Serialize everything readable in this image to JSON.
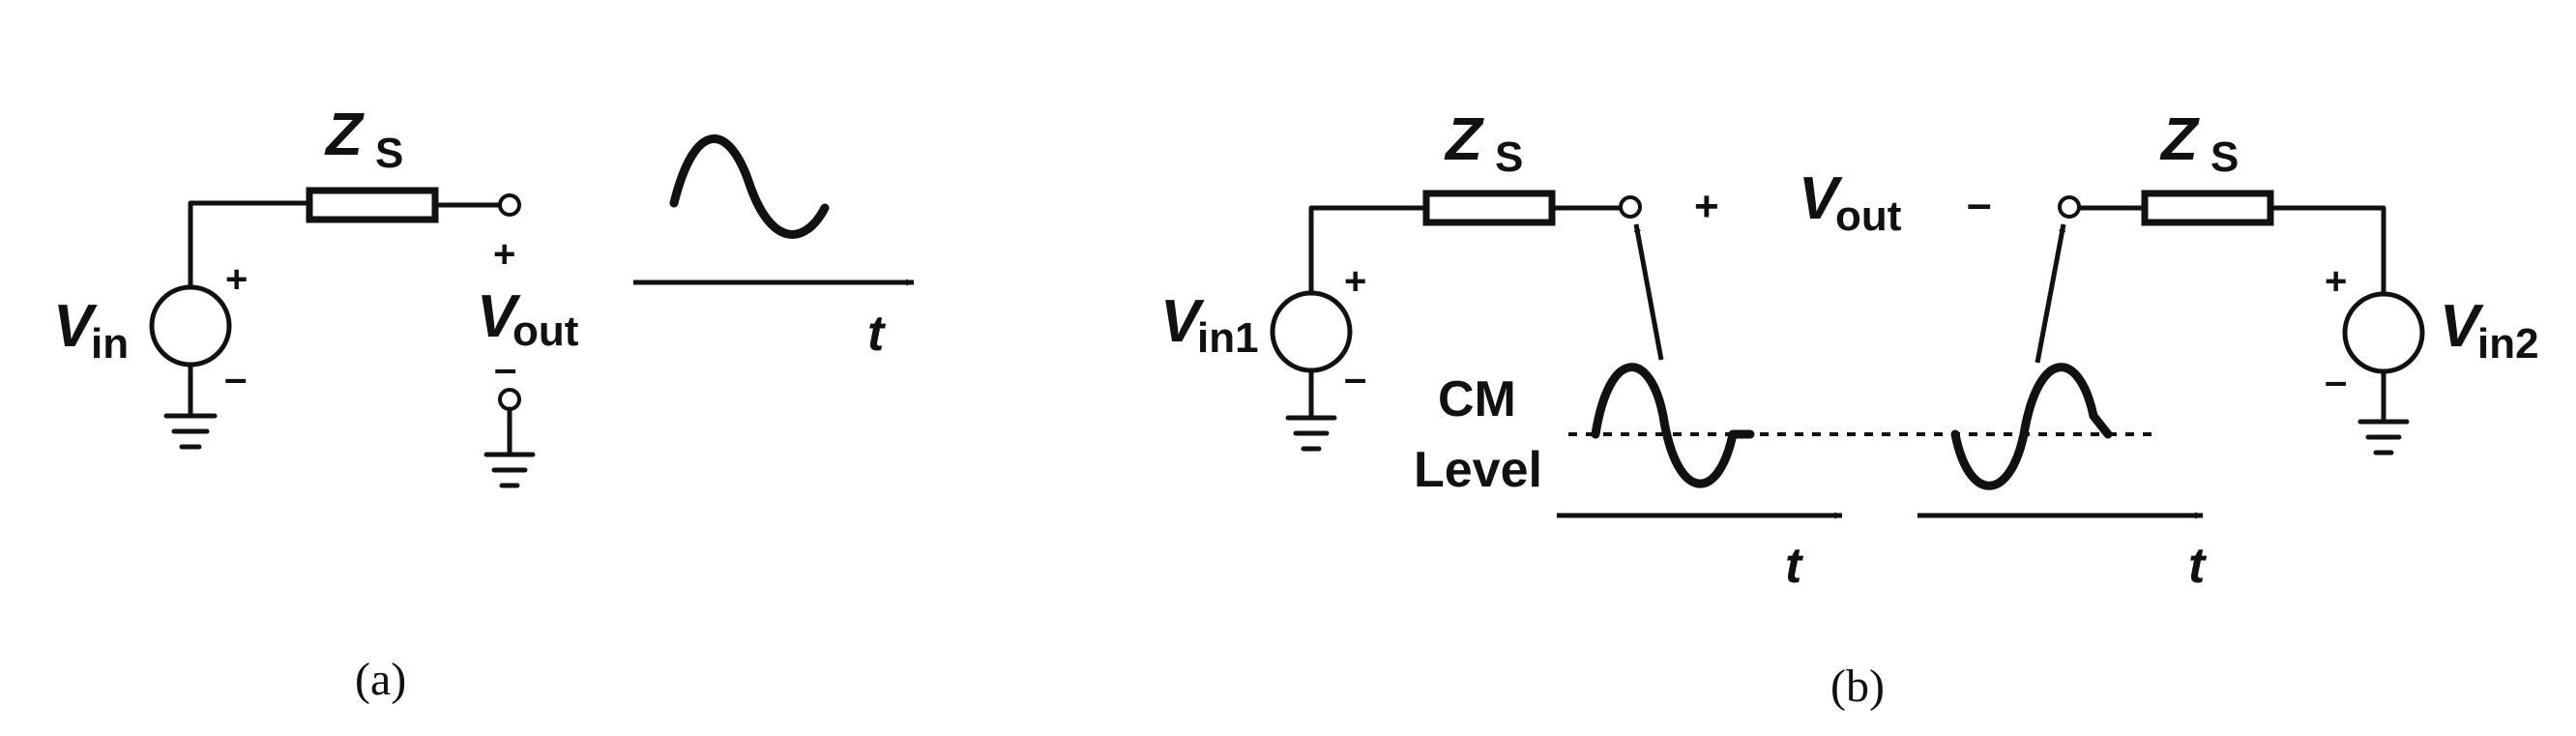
{
  "panel_a": {
    "impedance_label": "Z",
    "impedance_sub": "S",
    "source_label": "V",
    "source_sub": "in",
    "source_plus": "+",
    "source_minus": "–",
    "output_label": "V",
    "output_sub": "out",
    "output_plus": "+",
    "output_minus": "–",
    "time_label": "t",
    "caption": "(a)"
  },
  "panel_b": {
    "left_impedance_label": "Z",
    "left_impedance_sub": "S",
    "right_impedance_label": "Z",
    "right_impedance_sub": "S",
    "left_source_label": "V",
    "left_source_sub": "in1",
    "right_source_label": "V",
    "right_source_sub": "in2",
    "left_source_plus": "+",
    "left_source_minus": "–",
    "right_source_plus": "+",
    "right_source_minus": "–",
    "output_plus": "+",
    "output_label": "V",
    "output_sub": "out",
    "output_minus": "–",
    "cm_line1": "CM",
    "cm_line2": "Level",
    "time_label_left": "t",
    "time_label_right": "t",
    "caption": "(b)"
  }
}
